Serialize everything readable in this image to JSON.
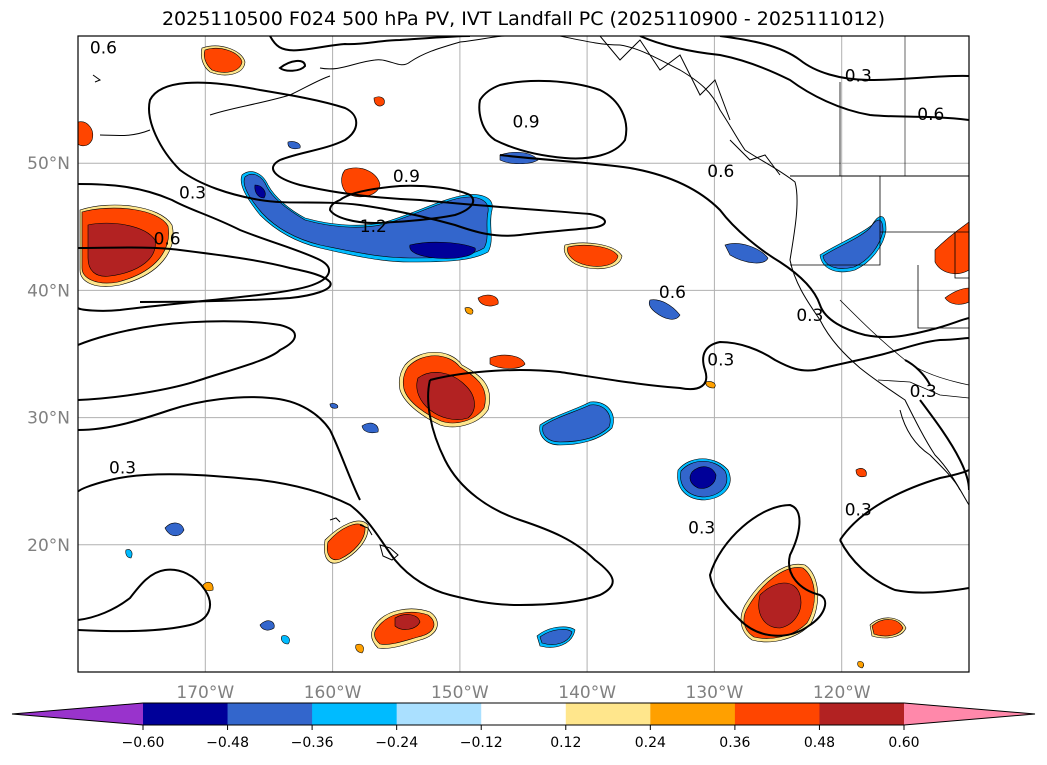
{
  "title": "2025110500 F024 500 hPa PV, IVT Landfall PC (2025110900 - 2025111012)",
  "map": {
    "lat_range": [
      10,
      60
    ],
    "lon_range": [
      -180,
      -110
    ],
    "lat_labels": [
      {
        "lat": 50,
        "text": "50°N"
      },
      {
        "lat": 40,
        "text": "40°N"
      },
      {
        "lat": 30,
        "text": "30°N"
      },
      {
        "lat": 20,
        "text": "20°N"
      }
    ],
    "lon_labels": [
      {
        "lon": -170,
        "text": "170°W"
      },
      {
        "lon": -160,
        "text": "160°W"
      },
      {
        "lon": -150,
        "text": "150°W"
      },
      {
        "lon": -140,
        "text": "140°W"
      },
      {
        "lon": -130,
        "text": "130°W"
      },
      {
        "lon": -120,
        "text": "120°W"
      }
    ],
    "contour_labels": [
      {
        "text": "0.6",
        "lon": -178,
        "lat": 59.0
      },
      {
        "text": "0.3",
        "lon": -118.7,
        "lat": 56.8
      },
      {
        "text": "0.6",
        "lon": -113.0,
        "lat": 53.8
      },
      {
        "text": "0.9",
        "lon": -144.8,
        "lat": 53.2
      },
      {
        "text": "0.6",
        "lon": -129.5,
        "lat": 49.3
      },
      {
        "text": "0.9",
        "lon": -154.2,
        "lat": 48.9
      },
      {
        "text": "0.3",
        "lon": -171.0,
        "lat": 47.6
      },
      {
        "text": "1.2",
        "lon": -156.8,
        "lat": 45.0
      },
      {
        "text": "0.6",
        "lon": -173.0,
        "lat": 44.0
      },
      {
        "text": "0.6",
        "lon": -133.3,
        "lat": 39.8
      },
      {
        "text": "0.3",
        "lon": -122.5,
        "lat": 38.0
      },
      {
        "text": "0.3",
        "lon": -129.5,
        "lat": 34.5
      },
      {
        "text": "0.3",
        "lon": -113.6,
        "lat": 32.0
      },
      {
        "text": "0.3",
        "lon": -176.5,
        "lat": 26.0
      },
      {
        "text": "0.3",
        "lon": -118.7,
        "lat": 22.7
      },
      {
        "text": "0.3",
        "lon": -131.0,
        "lat": 21.3
      }
    ]
  },
  "colorbar": {
    "ticks": [
      "−0.60",
      "−0.48",
      "−0.36",
      "−0.24",
      "−0.12",
      "0.12",
      "0.24",
      "0.36",
      "0.48",
      "0.60"
    ],
    "colors": [
      "#9933cc",
      "#000099",
      "#3366cc",
      "#00bbff",
      "#aae0ff",
      "#ffffff",
      "#ffe68c",
      "#ffa000",
      "#ff4500",
      "#b22222",
      "#ff88aa"
    ]
  }
}
